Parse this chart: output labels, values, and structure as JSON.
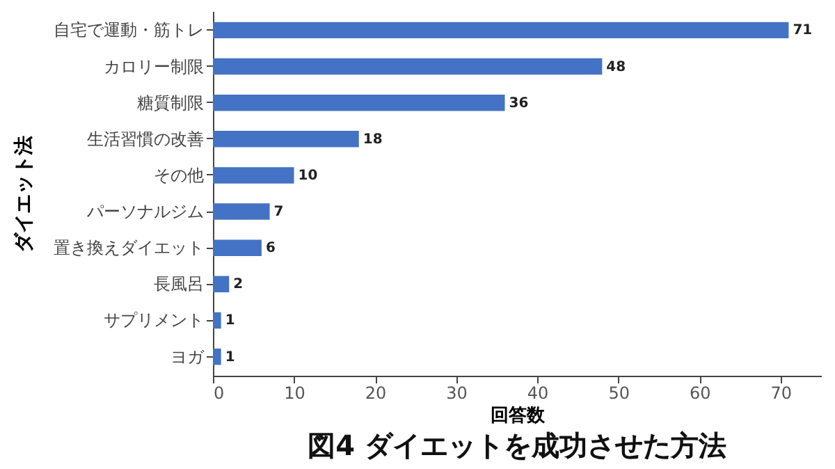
{
  "chart_data": {
    "type": "bar",
    "orientation": "horizontal",
    "title": "図4 ダイエットを成功させた方法",
    "xlabel": "回答数",
    "ylabel": "ダイエット法",
    "categories": [
      "自宅で運動・筋トレ",
      "カロリー制限",
      "糖質制限",
      "生活習慣の改善",
      "その他",
      "パーソナルジム",
      "置き換えダイエット",
      "長風呂",
      "サプリメント",
      "ヨガ"
    ],
    "values": [
      71,
      48,
      36,
      18,
      10,
      7,
      6,
      2,
      1,
      1
    ],
    "color": "#4472c4",
    "data_labels": true,
    "xlim": [
      0,
      75
    ],
    "xticks": [
      0,
      10,
      20,
      30,
      40,
      50,
      60,
      70
    ],
    "grid": false
  }
}
